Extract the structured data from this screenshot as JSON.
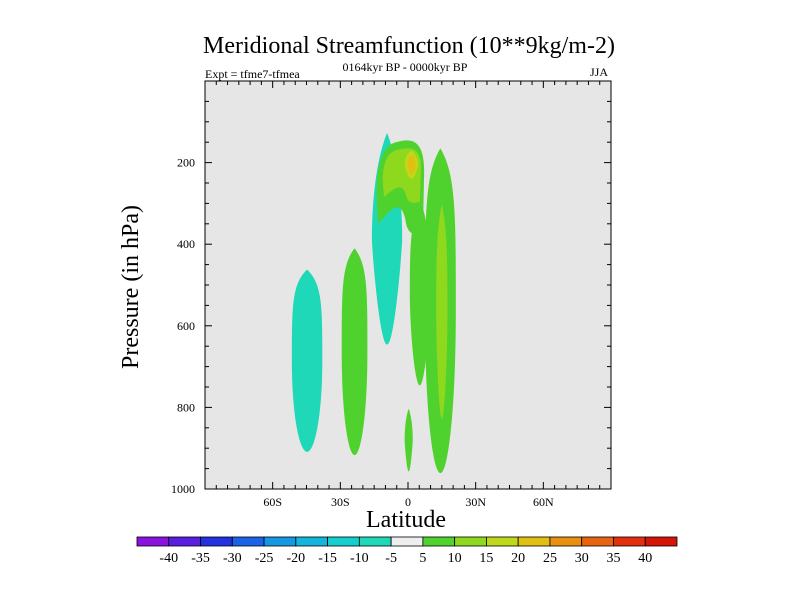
{
  "chart_data": {
    "type": "contour",
    "title": "Meridional Streamfunction (10**9kg/m-2)",
    "left_label": "Expt = tfme7-tfmea",
    "center_label": "0164kyr BP - 0000kyr BP",
    "right_label": "JJA",
    "xlabel": "Latitude",
    "ylabel": "Pressure (in hPa)",
    "xlim": [
      -90,
      90
    ],
    "ylim": [
      0,
      1000
    ],
    "y_reversed": true,
    "x_ticks": [
      {
        "value": -60,
        "label": "60S"
      },
      {
        "value": -30,
        "label": "30S"
      },
      {
        "value": 0,
        "label": "0"
      },
      {
        "value": 30,
        "label": "30N"
      },
      {
        "value": 60,
        "label": "60N"
      }
    ],
    "y_ticks": [
      {
        "value": 200,
        "label": "200"
      },
      {
        "value": 400,
        "label": "400"
      },
      {
        "value": 600,
        "label": "600"
      },
      {
        "value": 800,
        "label": "800"
      },
      {
        "value": 1000,
        "label": "1000"
      }
    ],
    "background_color": "#e6e6e6",
    "colorbar": {
      "labels": [
        "-40",
        "-35",
        "-30",
        "-25",
        "-20",
        "-15",
        "-10",
        "-5",
        "5",
        "10",
        "15",
        "20",
        "25",
        "30",
        "35",
        "40"
      ],
      "colors": [
        "#8a14de",
        "#5a1ee0",
        "#2232e0",
        "#1c62e6",
        "#1498e2",
        "#12b6dc",
        "#14cfcd",
        "#1ed8b8",
        "#eeeeee",
        "#50d22e",
        "#8ed81e",
        "#c0d81c",
        "#e2c012",
        "#e89010",
        "#e66412",
        "#e2300e",
        "#d41606"
      ]
    },
    "regions": [
      {
        "level": "-10",
        "lat": [
          -13.5,
          -4.6
        ],
        "p": [
          136,
          608
        ],
        "shape": "narrow-oval"
      },
      {
        "level": "-5",
        "lat": [
          -16.0,
          -2.6
        ],
        "p": [
          127,
          646
        ],
        "shape": "oval"
      },
      {
        "level": "-5",
        "lat": [
          -51.5,
          -38.0
        ],
        "p": [
          462,
          909
        ],
        "shape": "tall-oval"
      },
      {
        "level": "-5",
        "lat": [
          -7.5,
          -5.2
        ],
        "p": [
          376,
          456
        ],
        "shape": "small-oval"
      },
      {
        "level": "5",
        "lat": [
          -29.4,
          -18.0
        ],
        "p": [
          410,
          917
        ],
        "shape": "tall-oval"
      },
      {
        "level": "5",
        "lat": [
          7.5,
          21.2
        ],
        "p": [
          165,
          961
        ],
        "shape": "tall-oval"
      },
      {
        "level": "5",
        "lat": [
          0.8,
          9.6
        ],
        "p": [
          292,
          746
        ],
        "shape": "narrow-oval"
      },
      {
        "level": "5",
        "lat": [
          -1.5,
          2.1
        ],
        "p": [
          803,
          957
        ],
        "shape": "small-oval"
      },
      {
        "level": "5",
        "lat": [
          -15,
          8
        ],
        "p": [
          145,
          360
        ],
        "shape": "upper-cap"
      },
      {
        "level": "10",
        "lat": [
          12.5,
          17.5
        ],
        "p": [
          302,
          828
        ],
        "shape": "narrow-oval"
      },
      {
        "level": "10",
        "lat": [
          -12,
          6.4
        ],
        "p": [
          165,
          290
        ],
        "shape": "upper-cap"
      },
      {
        "level": "15",
        "lat": [
          -1.5,
          4.5
        ],
        "p": [
          170,
          240
        ],
        "shape": "small-oval"
      },
      {
        "level": "20",
        "lat": [
          -0.2,
          3.5
        ],
        "p": [
          180,
          230
        ],
        "shape": "small-oval"
      }
    ]
  }
}
